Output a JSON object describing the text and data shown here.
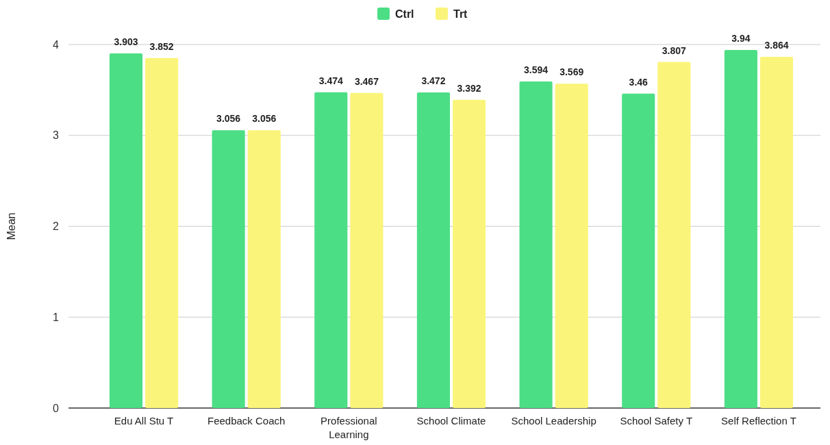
{
  "chart_data": {
    "type": "bar",
    "ylabel": "Mean",
    "categories": [
      "Edu All Stu T",
      "Feedback Coach",
      "Professional Learning",
      "School Climate",
      "School Leadership",
      "School Safety T",
      "Self Reflection T"
    ],
    "series": [
      {
        "name": "Ctrl",
        "color": "#4cde85",
        "values": [
          3.903,
          3.056,
          3.474,
          3.472,
          3.594,
          3.46,
          3.94
        ]
      },
      {
        "name": "Trt",
        "color": "#faf57a",
        "values": [
          3.852,
          3.056,
          3.467,
          3.392,
          3.569,
          3.807,
          3.864
        ]
      }
    ],
    "ylim": [
      0,
      4
    ],
    "yticks": [
      0,
      1,
      2,
      3,
      4
    ],
    "grid": "y",
    "legend": "top",
    "data_labels": true
  }
}
